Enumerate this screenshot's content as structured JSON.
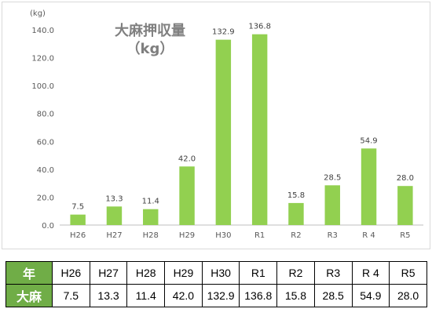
{
  "chart_data": {
    "type": "bar",
    "title": "大麻押収量",
    "title_unit": "（kg）",
    "ylabel": "(kg)",
    "categories": [
      "H26",
      "H27",
      "H28",
      "H29",
      "H30",
      "R1",
      "R2",
      "R3",
      "R 4",
      "R5"
    ],
    "values": [
      7.5,
      13.3,
      11.4,
      42.0,
      132.9,
      136.8,
      15.8,
      28.5,
      54.9,
      28.0
    ],
    "value_labels": [
      "7.5",
      "13.3",
      "11.4",
      "42.0",
      "132.9",
      "136.8",
      "15.8",
      "28.5",
      "54.9",
      "28.0"
    ],
    "y_ticks": [
      "0.0",
      "20.0",
      "40.0",
      "60.0",
      "80.0",
      "100.0",
      "120.0",
      "140.0"
    ],
    "ylim": [
      0,
      140
    ],
    "bar_color": "#92d050",
    "grid": false,
    "legend": "none"
  },
  "table": {
    "row_headers": [
      "年",
      "大麻"
    ],
    "years": [
      "H26",
      "H27",
      "H28",
      "H29",
      "H30",
      "R1",
      "R2",
      "R3",
      "R 4",
      "R5"
    ],
    "values": [
      "7.5",
      "13.3",
      "11.4",
      "42.0",
      "132.9",
      "136.8",
      "15.8",
      "28.5",
      "54.9",
      "28.0"
    ],
    "header_color": "#70ad47"
  }
}
